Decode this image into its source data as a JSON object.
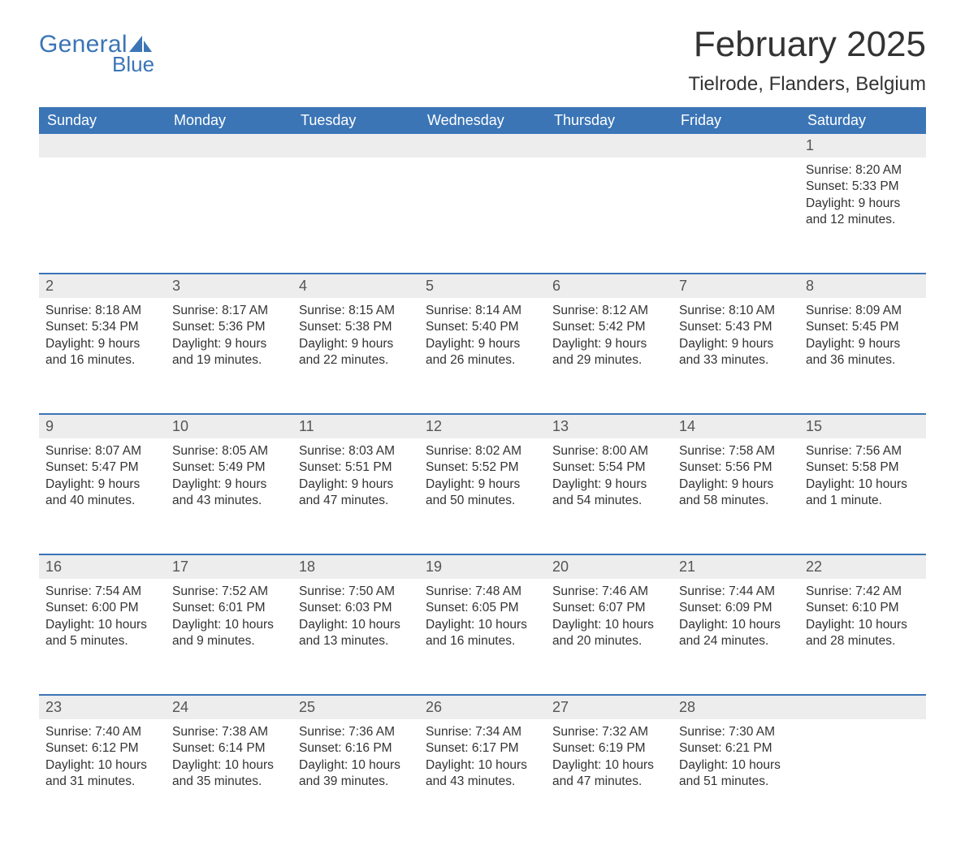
{
  "logo": {
    "word1": "General",
    "word2": "Blue"
  },
  "title": "February 2025",
  "subtitle": "Tielrode, Flanders, Belgium",
  "colors": {
    "brand": "#3b75b6",
    "header_text": "#ffffff",
    "daynum_bg": "#ededed",
    "page_bg": "#ffffff",
    "body_text": "#333333"
  },
  "day_headers": [
    "Sunday",
    "Monday",
    "Tuesday",
    "Wednesday",
    "Thursday",
    "Friday",
    "Saturday"
  ],
  "weeks": [
    [
      null,
      null,
      null,
      null,
      null,
      null,
      {
        "n": 1,
        "sunrise": "8:20 AM",
        "sunset": "5:33 PM",
        "daylight": "9 hours and 12 minutes."
      }
    ],
    [
      {
        "n": 2,
        "sunrise": "8:18 AM",
        "sunset": "5:34 PM",
        "daylight": "9 hours and 16 minutes."
      },
      {
        "n": 3,
        "sunrise": "8:17 AM",
        "sunset": "5:36 PM",
        "daylight": "9 hours and 19 minutes."
      },
      {
        "n": 4,
        "sunrise": "8:15 AM",
        "sunset": "5:38 PM",
        "daylight": "9 hours and 22 minutes."
      },
      {
        "n": 5,
        "sunrise": "8:14 AM",
        "sunset": "5:40 PM",
        "daylight": "9 hours and 26 minutes."
      },
      {
        "n": 6,
        "sunrise": "8:12 AM",
        "sunset": "5:42 PM",
        "daylight": "9 hours and 29 minutes."
      },
      {
        "n": 7,
        "sunrise": "8:10 AM",
        "sunset": "5:43 PM",
        "daylight": "9 hours and 33 minutes."
      },
      {
        "n": 8,
        "sunrise": "8:09 AM",
        "sunset": "5:45 PM",
        "daylight": "9 hours and 36 minutes."
      }
    ],
    [
      {
        "n": 9,
        "sunrise": "8:07 AM",
        "sunset": "5:47 PM",
        "daylight": "9 hours and 40 minutes."
      },
      {
        "n": 10,
        "sunrise": "8:05 AM",
        "sunset": "5:49 PM",
        "daylight": "9 hours and 43 minutes."
      },
      {
        "n": 11,
        "sunrise": "8:03 AM",
        "sunset": "5:51 PM",
        "daylight": "9 hours and 47 minutes."
      },
      {
        "n": 12,
        "sunrise": "8:02 AM",
        "sunset": "5:52 PM",
        "daylight": "9 hours and 50 minutes."
      },
      {
        "n": 13,
        "sunrise": "8:00 AM",
        "sunset": "5:54 PM",
        "daylight": "9 hours and 54 minutes."
      },
      {
        "n": 14,
        "sunrise": "7:58 AM",
        "sunset": "5:56 PM",
        "daylight": "9 hours and 58 minutes."
      },
      {
        "n": 15,
        "sunrise": "7:56 AM",
        "sunset": "5:58 PM",
        "daylight": "10 hours and 1 minute."
      }
    ],
    [
      {
        "n": 16,
        "sunrise": "7:54 AM",
        "sunset": "6:00 PM",
        "daylight": "10 hours and 5 minutes."
      },
      {
        "n": 17,
        "sunrise": "7:52 AM",
        "sunset": "6:01 PM",
        "daylight": "10 hours and 9 minutes."
      },
      {
        "n": 18,
        "sunrise": "7:50 AM",
        "sunset": "6:03 PM",
        "daylight": "10 hours and 13 minutes."
      },
      {
        "n": 19,
        "sunrise": "7:48 AM",
        "sunset": "6:05 PM",
        "daylight": "10 hours and 16 minutes."
      },
      {
        "n": 20,
        "sunrise": "7:46 AM",
        "sunset": "6:07 PM",
        "daylight": "10 hours and 20 minutes."
      },
      {
        "n": 21,
        "sunrise": "7:44 AM",
        "sunset": "6:09 PM",
        "daylight": "10 hours and 24 minutes."
      },
      {
        "n": 22,
        "sunrise": "7:42 AM",
        "sunset": "6:10 PM",
        "daylight": "10 hours and 28 minutes."
      }
    ],
    [
      {
        "n": 23,
        "sunrise": "7:40 AM",
        "sunset": "6:12 PM",
        "daylight": "10 hours and 31 minutes."
      },
      {
        "n": 24,
        "sunrise": "7:38 AM",
        "sunset": "6:14 PM",
        "daylight": "10 hours and 35 minutes."
      },
      {
        "n": 25,
        "sunrise": "7:36 AM",
        "sunset": "6:16 PM",
        "daylight": "10 hours and 39 minutes."
      },
      {
        "n": 26,
        "sunrise": "7:34 AM",
        "sunset": "6:17 PM",
        "daylight": "10 hours and 43 minutes."
      },
      {
        "n": 27,
        "sunrise": "7:32 AM",
        "sunset": "6:19 PM",
        "daylight": "10 hours and 47 minutes."
      },
      {
        "n": 28,
        "sunrise": "7:30 AM",
        "sunset": "6:21 PM",
        "daylight": "10 hours and 51 minutes."
      },
      null
    ]
  ],
  "labels": {
    "sunrise": "Sunrise: ",
    "sunset": "Sunset: ",
    "daylight": "Daylight: "
  }
}
